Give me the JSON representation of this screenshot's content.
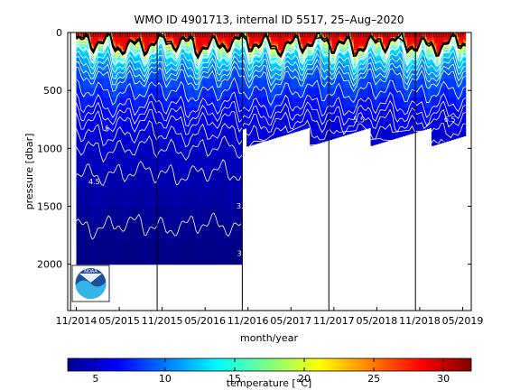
{
  "chart_data": {
    "type": "heatmap",
    "title": "WMO ID 4901713, internal ID 5517, 25–Aug–2020",
    "xlabel": "month/year",
    "ylabel": "pressure [dbar]",
    "x_ticks": [
      "11/2014",
      "05/2015",
      "11/2015",
      "05/2016",
      "11/2016",
      "05/2017",
      "11/2017",
      "05/2018",
      "11/2018",
      "05/2019"
    ],
    "x_tick_months": [
      0,
      6,
      12,
      18,
      24,
      30,
      36,
      42,
      48,
      54
    ],
    "xlim_months": [
      -1.2,
      55.2
    ],
    "y_ticks": [
      0,
      500,
      1000,
      1500,
      2000
    ],
    "ylim": [
      0,
      2400
    ],
    "y_reversed": true,
    "colorbar": {
      "label": "temperature [°C]",
      "ticks": [
        5,
        10,
        15,
        20,
        25,
        30
      ],
      "range": [
        3,
        32
      ],
      "colormap": "jet"
    },
    "deep_profiles_until_month": 23,
    "shallow_max_pressure": 1000,
    "deep_max_pressure": 2000,
    "vertical_lines_months": [
      -0.8,
      11.3,
      23.2,
      35.3,
      47.4
    ],
    "contour_labels": [
      {
        "text": "4.5",
        "month": 2.5,
        "pressure": 1310
      },
      {
        "text": "3.5",
        "month": 23.2,
        "pressure": 1520
      },
      {
        "text": "3",
        "month": 22.8,
        "pressure": 1930
      },
      {
        "text": "5",
        "month": 4.3,
        "pressure": 855
      },
      {
        "text": "5.5",
        "month": 39.5,
        "pressure": 775
      },
      {
        "text": "6.5",
        "month": 52.2,
        "pressure": 770
      }
    ],
    "profiles": [
      {
        "depth": [
          0,
          60,
          120,
          200,
          400,
          600,
          800,
          1000,
          1300,
          1600,
          2000
        ],
        "temperature": [
          29,
          28,
          20,
          13,
          9,
          7.2,
          5.8,
          5.0,
          4.3,
          3.6,
          3.0
        ]
      }
    ]
  },
  "colors": {
    "background": "#ffffff",
    "no_data": "#ffffff",
    "contour_line": "#ffffff",
    "thermocline_line": "#000000"
  },
  "logo": {
    "text": "NOAA",
    "icon": "noaa-logo-icon"
  }
}
